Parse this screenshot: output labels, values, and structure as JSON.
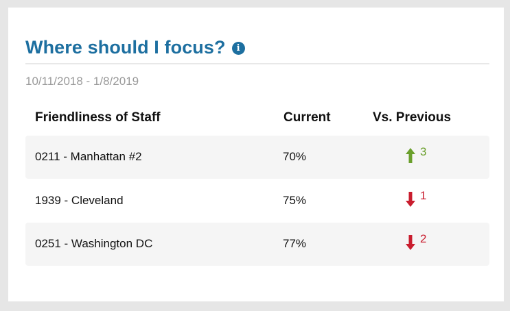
{
  "card": {
    "title": "Where should I focus?",
    "info_icon": "info-circle-icon",
    "date_range": "10/11/2018 - 1/8/2019"
  },
  "table": {
    "headers": [
      "Friendliness of Staff",
      "Current",
      "Vs. Previous"
    ],
    "rows": [
      {
        "location": "0211 - Manhattan #2",
        "current": "70%",
        "direction": "up",
        "change": "3"
      },
      {
        "location": "1939 - Cleveland",
        "current": "75%",
        "direction": "down",
        "change": "1"
      },
      {
        "location": "0251 - Washington DC",
        "current": "77%",
        "direction": "down",
        "change": "2"
      }
    ]
  },
  "colors": {
    "title": "#1d6fa0",
    "up": "#6a9f2c",
    "down": "#c91d2e"
  }
}
